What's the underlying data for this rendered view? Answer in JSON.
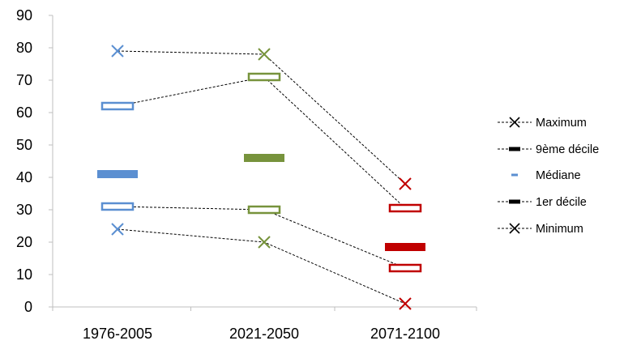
{
  "chart_data": {
    "type": "scatter",
    "title": "",
    "xlabel": "",
    "ylabel": "",
    "categories": [
      "1976-2005",
      "2021-2050",
      "2071-2100"
    ],
    "ylim": [
      0,
      90
    ],
    "yticks": [
      0,
      10,
      20,
      30,
      40,
      50,
      60,
      70,
      80,
      90
    ],
    "grid": false,
    "legend_position": "right",
    "category_colors": [
      "#5b8fd1",
      "#77933c",
      "#c00000"
    ],
    "series": [
      {
        "name": "Maximum",
        "marker": "x",
        "line": "dashed",
        "values": [
          79,
          78,
          38
        ]
      },
      {
        "name": "9ème décile",
        "marker": "hollow-bar",
        "line": "dashed",
        "values": [
          62,
          71,
          30.5
        ]
      },
      {
        "name": "Médiane",
        "marker": "filled-bar",
        "line": "none",
        "values": [
          41,
          46,
          18.5
        ]
      },
      {
        "name": "1er décile",
        "marker": "hollow-bar",
        "line": "dashed",
        "values": [
          31,
          30,
          12
        ]
      },
      {
        "name": "Minimum",
        "marker": "x",
        "line": "dashed",
        "values": [
          24,
          20,
          1
        ]
      }
    ]
  }
}
